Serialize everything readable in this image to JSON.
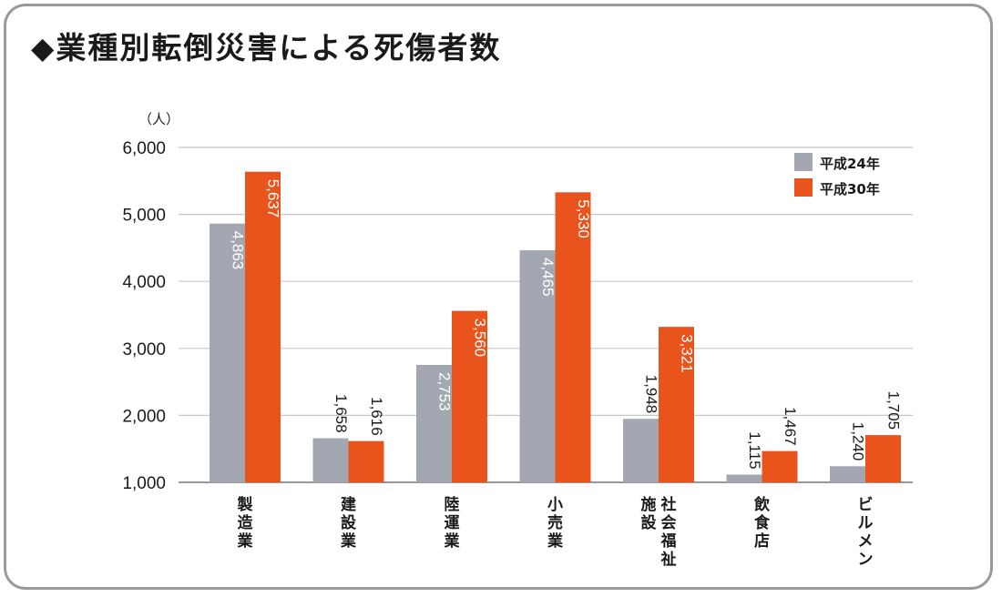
{
  "colors": {
    "series_a": "#a3a7b2",
    "series_b": "#e8541c",
    "grid": "#c8c8c8",
    "frame": "#9a9a9a"
  },
  "chart_data": {
    "type": "bar",
    "title": "◆業種別転倒災害による死傷者数",
    "ylabel": "（人）",
    "xlabel": "",
    "ylim": [
      1000,
      6000
    ],
    "yticks": [
      "1,000",
      "2,000",
      "3,000",
      "4,000",
      "5,000",
      "6,000"
    ],
    "grid": true,
    "legend_position": "top-right",
    "categories": [
      "製造業",
      "建設業",
      "陸運業",
      "小売業",
      "社会福祉施設",
      "飲食店",
      "ビルメン"
    ],
    "category_lines": [
      [
        "製造業"
      ],
      [
        "建設業"
      ],
      [
        "陸運業"
      ],
      [
        "小売業"
      ],
      [
        "社会福祉",
        "施設"
      ],
      [
        "飲食店"
      ],
      [
        "ビルメン"
      ]
    ],
    "series": [
      {
        "name": "平成24年",
        "values": [
          4863,
          1658,
          2753,
          4465,
          1948,
          1115,
          1240
        ],
        "labels": [
          "4,863",
          "1,658",
          "2,753",
          "4,465",
          "1,948",
          "1,115",
          "1,240"
        ]
      },
      {
        "name": "平成30年",
        "values": [
          5637,
          1616,
          3560,
          5330,
          3321,
          1467,
          1705
        ],
        "labels": [
          "5,637",
          "1,616",
          "3,560",
          "5,330",
          "3,321",
          "1,467",
          "1,705"
        ]
      }
    ]
  }
}
